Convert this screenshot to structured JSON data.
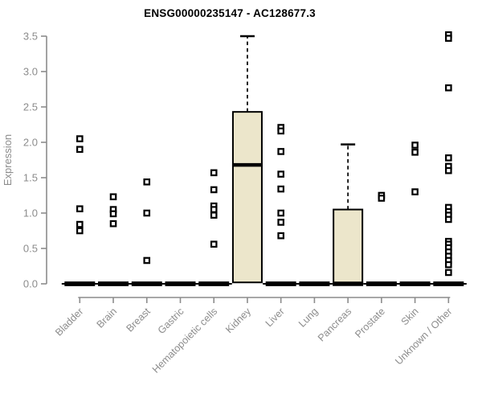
{
  "chart_data": {
    "type": "boxplot",
    "title": "ENSG00000235147 - AC128677.3",
    "ylabel": "Expression",
    "xlabel": "",
    "ylim": [
      0.0,
      3.5
    ],
    "yticks": [
      0.0,
      0.5,
      1.0,
      1.5,
      2.0,
      2.5,
      3.0,
      3.5
    ],
    "grid": false,
    "legend": "none",
    "categories": [
      "Bladder",
      "Brain",
      "Breast",
      "Gastric",
      "Hematopoietic cells",
      "Kidney",
      "Liver",
      "Lung",
      "Pancreas",
      "Prostate",
      "Skin",
      "Unknown / Other"
    ],
    "boxes": [
      {
        "category": "Bladder",
        "q1": 0,
        "median": 0,
        "q3": 0,
        "whisker_low": 0,
        "whisker_high": 0,
        "outliers": [
          2.05,
          1.9,
          1.06,
          0.84,
          0.75
        ]
      },
      {
        "category": "Brain",
        "q1": 0,
        "median": 0,
        "q3": 0,
        "whisker_low": 0,
        "whisker_high": 0,
        "outliers": [
          1.23,
          1.05,
          0.99,
          0.85
        ]
      },
      {
        "category": "Breast",
        "q1": 0,
        "median": 0,
        "q3": 0,
        "whisker_low": 0,
        "whisker_high": 0,
        "outliers": [
          1.44,
          1.0,
          0.33
        ]
      },
      {
        "category": "Gastric",
        "q1": 0,
        "median": 0,
        "q3": 0,
        "whisker_low": 0,
        "whisker_high": 0,
        "outliers": []
      },
      {
        "category": "Hematopoietic cells",
        "q1": 0,
        "median": 0,
        "q3": 0,
        "whisker_low": 0,
        "whisker_high": 0,
        "outliers": [
          1.57,
          1.33,
          1.1,
          1.05,
          0.97,
          0.56
        ]
      },
      {
        "category": "Kidney",
        "q1": 0.02,
        "median": 1.68,
        "q3": 2.43,
        "whisker_low": 0.02,
        "whisker_high": 3.5,
        "outliers": []
      },
      {
        "category": "Liver",
        "q1": 0,
        "median": 0,
        "q3": 0,
        "whisker_low": 0,
        "whisker_high": 0,
        "outliers": [
          2.21,
          2.16,
          1.87,
          1.55,
          1.34,
          1.0,
          0.87,
          0.68
        ]
      },
      {
        "category": "Lung",
        "q1": 0,
        "median": 0,
        "q3": 0,
        "whisker_low": 0,
        "whisker_high": 0,
        "outliers": []
      },
      {
        "category": "Pancreas",
        "q1": 0,
        "median": 0,
        "q3": 1.05,
        "whisker_low": 0,
        "whisker_high": 1.97,
        "outliers": []
      },
      {
        "category": "Prostate",
        "q1": 0,
        "median": 0,
        "q3": 0,
        "whisker_low": 0,
        "whisker_high": 0,
        "outliers": [
          1.25,
          1.21
        ]
      },
      {
        "category": "Skin",
        "q1": 0,
        "median": 0,
        "q3": 0,
        "whisker_low": 0,
        "whisker_high": 0,
        "outliers": [
          1.96,
          1.86,
          1.3
        ]
      },
      {
        "category": "Unknown / Other",
        "q1": 0,
        "median": 0,
        "q3": 0,
        "whisker_low": 0,
        "whisker_high": 0,
        "outliers": [
          3.52,
          3.47,
          2.77,
          1.78,
          1.66,
          1.6,
          1.08,
          1.02,
          0.97,
          0.91,
          0.6,
          0.56,
          0.51,
          0.45,
          0.39,
          0.33,
          0.27,
          0.16
        ]
      }
    ],
    "colors": {
      "box_fill": "#ECE6CB",
      "box_border": "#000000",
      "median": "#000000",
      "whisker": "#000000",
      "outlier_border": "#000000",
      "outlier_fill": "#ffffff",
      "axis": "#8C8C8C",
      "tick_label": "#8C8C8C",
      "title_text": "#000000",
      "background": "#ffffff"
    }
  }
}
